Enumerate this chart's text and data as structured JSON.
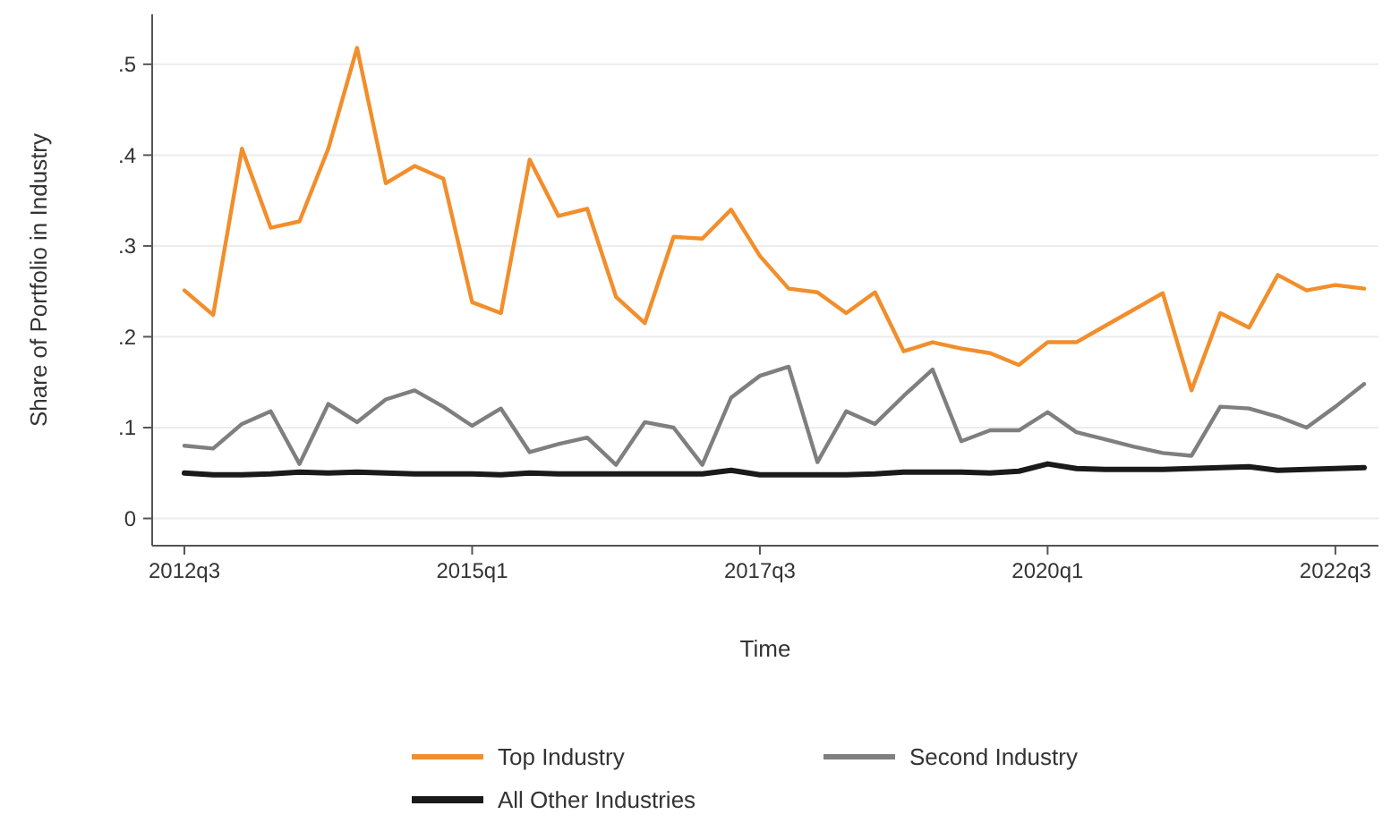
{
  "chart_data": {
    "type": "line",
    "xlabel": "Time",
    "ylabel": "Share of Portfolio in Industry",
    "categories": [
      "2012q3",
      null,
      null,
      null,
      null,
      null,
      null,
      null,
      null,
      null,
      "2015q1",
      null,
      null,
      null,
      null,
      null,
      null,
      null,
      null,
      null,
      "2017q3",
      null,
      null,
      null,
      null,
      null,
      null,
      null,
      null,
      null,
      "2020q1",
      null,
      null,
      null,
      null,
      null,
      null,
      null,
      null,
      null,
      "2022q3",
      null
    ],
    "series": [
      {
        "name": "Top Industry",
        "color": "#f28e2b",
        "values": [
          0.251,
          0.224,
          0.407,
          0.32,
          0.327,
          0.407,
          0.518,
          0.369,
          0.388,
          0.374,
          0.238,
          0.226,
          0.395,
          0.333,
          0.341,
          0.244,
          0.215,
          0.31,
          0.308,
          0.34,
          0.289,
          0.253,
          0.249,
          0.226,
          0.249,
          0.184,
          0.194,
          0.187,
          0.182,
          0.169,
          0.194,
          0.194,
          0.212,
          0.23,
          0.248,
          0.141,
          0.226,
          0.21,
          0.268,
          0.251,
          0.257,
          0.253
        ]
      },
      {
        "name": "Second Industry",
        "color": "#7f7f7f",
        "values": [
          0.08,
          0.077,
          0.104,
          0.118,
          0.06,
          0.126,
          0.106,
          0.131,
          0.141,
          0.123,
          0.102,
          0.121,
          0.073,
          0.082,
          0.089,
          0.059,
          0.106,
          0.1,
          0.059,
          0.133,
          0.157,
          0.167,
          0.062,
          0.118,
          0.104,
          0.135,
          0.164,
          0.085,
          0.097,
          0.097,
          0.117,
          0.095,
          0.087,
          0.079,
          0.072,
          0.069,
          0.123,
          0.121,
          0.112,
          0.1,
          0.123,
          0.148
        ]
      },
      {
        "name": "All Other Industries",
        "color": "#1a1a1a",
        "values": [
          0.05,
          0.048,
          0.048,
          0.049,
          0.051,
          0.05,
          0.051,
          0.05,
          0.049,
          0.049,
          0.049,
          0.048,
          0.05,
          0.049,
          0.049,
          0.049,
          0.049,
          0.049,
          0.049,
          0.053,
          0.048,
          0.048,
          0.048,
          0.048,
          0.049,
          0.051,
          0.051,
          0.051,
          0.05,
          0.052,
          0.06,
          0.055,
          0.054,
          0.054,
          0.054,
          0.055,
          0.056,
          0.057,
          0.053,
          0.054,
          0.055,
          0.056
        ]
      }
    ],
    "ylim": [
      -0.03,
      0.555
    ],
    "yticks": [
      {
        "value": 0,
        "label": "0"
      },
      {
        "value": 0.1,
        "label": ".1"
      },
      {
        "value": 0.2,
        "label": ".2"
      },
      {
        "value": 0.3,
        "label": ".3"
      },
      {
        "value": 0.4,
        "label": ".4"
      },
      {
        "value": 0.5,
        "label": ".5"
      }
    ],
    "grid": "y",
    "legend": "bottom",
    "marker": "none",
    "line_style": "solid"
  }
}
